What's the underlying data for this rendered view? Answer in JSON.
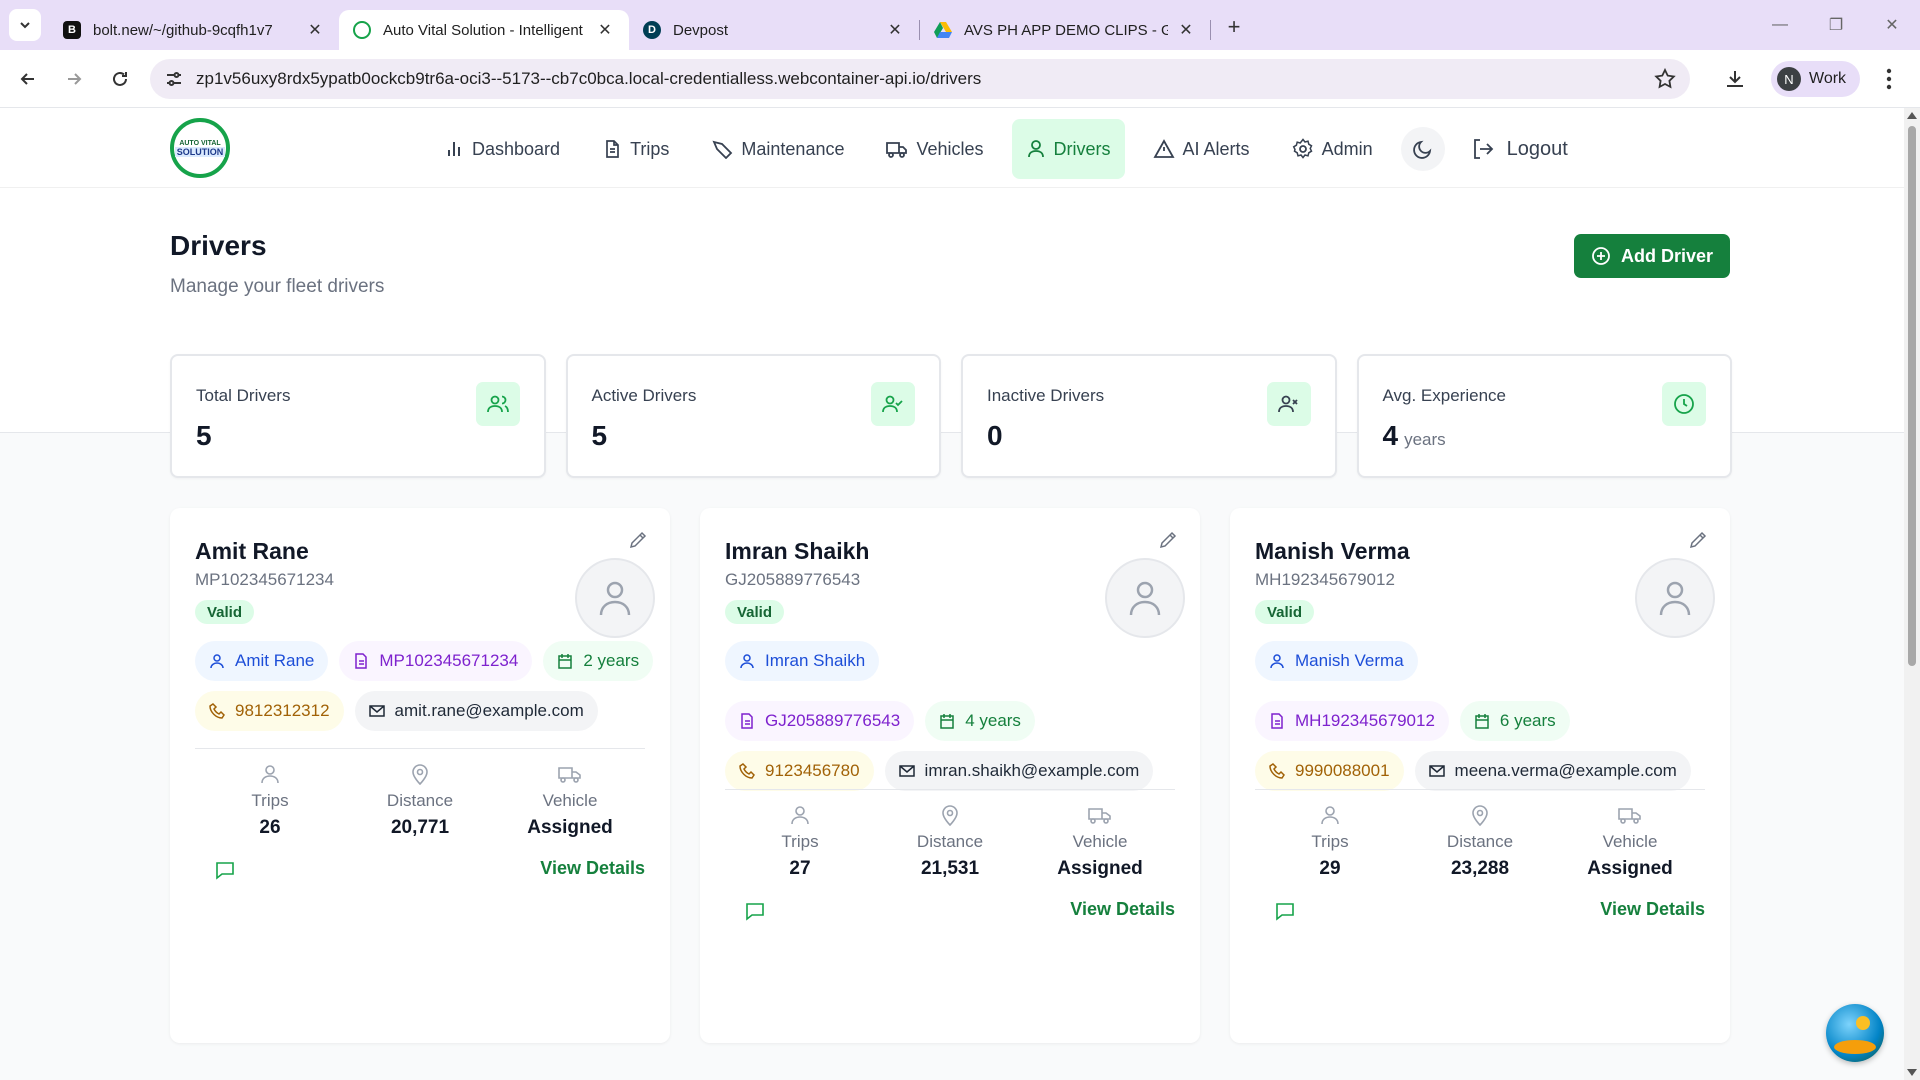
{
  "browser": {
    "tabs": [
      {
        "title": "bolt.new/~/github-9cqfh1v7",
        "favicon": "B",
        "active": false
      },
      {
        "title": "Auto Vital Solution - Intelligent",
        "favicon": "",
        "active": true
      },
      {
        "title": "Devpost",
        "favicon": "D",
        "active": false
      },
      {
        "title": "AVS PH APP DEMO CLIPS - Goo",
        "favicon": "",
        "active": false
      }
    ],
    "url": "zp1v56uxy8rdx5ypatb0ockcb9tr6a-oci3--5173--cb7c0bca.local-credentialless.webcontainer-api.io/drivers",
    "profile_initial": "N",
    "profile_label": "Work"
  },
  "logo": {
    "line1": "AUTO VITAL",
    "line2": "SOLUTION"
  },
  "nav": {
    "items": [
      {
        "label": "Dashboard",
        "icon": "bar-chart-icon"
      },
      {
        "label": "Trips",
        "icon": "file-text-icon"
      },
      {
        "label": "Maintenance",
        "icon": "wrench-icon"
      },
      {
        "label": "Vehicles",
        "icon": "truck-icon"
      },
      {
        "label": "Drivers",
        "icon": "user-icon",
        "active": true
      },
      {
        "label": "AI Alerts",
        "icon": "alert-triangle-icon"
      },
      {
        "label": "Admin",
        "icon": "settings-icon"
      }
    ],
    "logout": "Logout"
  },
  "header": {
    "title": "Drivers",
    "subtitle": "Manage your fleet drivers",
    "add_button": "Add Driver"
  },
  "stats": [
    {
      "label": "Total Drivers",
      "value": "5",
      "unit": "",
      "icon": "users-icon"
    },
    {
      "label": "Active Drivers",
      "value": "5",
      "unit": "",
      "icon": "user-check-icon"
    },
    {
      "label": "Inactive Drivers",
      "value": "0",
      "unit": "",
      "icon": "user-x-icon"
    },
    {
      "label": "Avg. Experience",
      "value": "4",
      "unit": "years",
      "icon": "clock-icon"
    }
  ],
  "metric_labels": {
    "trips": "Trips",
    "distance": "Distance",
    "vehicle": "Vehicle",
    "view": "View Details"
  },
  "drivers": [
    {
      "name": "Amit Rane",
      "license": "MP102345671234",
      "status": "Valid",
      "experience": "2 years",
      "phone": "9812312312",
      "email": "amit.rane@example.com",
      "trips": "26",
      "distance": "20,771",
      "vehicle": "Assigned"
    },
    {
      "name": "Imran Shaikh",
      "license": "GJ205889776543",
      "status": "Valid",
      "experience": "4 years",
      "phone": "9123456780",
      "email": "imran.shaikh@example.com",
      "trips": "27",
      "distance": "21,531",
      "vehicle": "Assigned"
    },
    {
      "name": "Manish Verma",
      "license": "MH192345679012",
      "status": "Valid",
      "experience": "6 years",
      "phone": "9990088001",
      "email": "meena.verma@example.com",
      "trips": "29",
      "distance": "23,288",
      "vehicle": "Assigned"
    }
  ]
}
